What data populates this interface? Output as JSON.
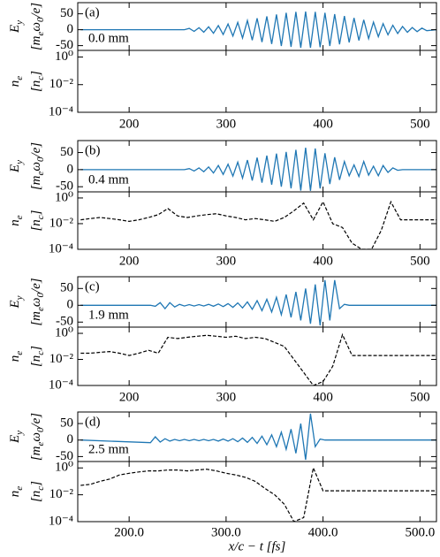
{
  "chart_data": [
    {
      "type": "line",
      "panel_label": "(a)",
      "annotation": "0.0 mm",
      "ylabel": [
        "E",
        "y"
      ],
      "yunit": [
        "[m",
        "e",
        "ω",
        "0",
        "/e]"
      ],
      "x": [
        150,
        222,
        227,
        232,
        237,
        242,
        247,
        252,
        257,
        262,
        267,
        272,
        277,
        282,
        287,
        292,
        297,
        302,
        307,
        312,
        317,
        322,
        327,
        332,
        337,
        342,
        347,
        352,
        357,
        362,
        367,
        372,
        377,
        382,
        387,
        392,
        397,
        402,
        407,
        412,
        417,
        422,
        427,
        432,
        437,
        442,
        447,
        452,
        457,
        462,
        467,
        472,
        477,
        482,
        487,
        492,
        497,
        502,
        507,
        517
      ],
      "series": [
        {
          "color": "#1f77b4",
          "values": [
            0,
            0,
            0,
            0,
            0,
            0,
            0,
            0,
            0,
            4.2,
            -5.2,
            6.4,
            -7.7,
            9.3,
            -11,
            13,
            -15,
            18,
            -20,
            23,
            -26,
            29,
            -33,
            36,
            -39,
            42,
            -45,
            48,
            -51,
            53,
            -54,
            56,
            -57,
            57,
            -57,
            56,
            -55,
            53,
            -51,
            49,
            -46,
            43,
            -40,
            37,
            -34,
            31,
            -28,
            24,
            -22,
            19,
            -16,
            14,
            -12,
            10,
            -8,
            7,
            -6,
            5,
            -3,
            0
          ]
        }
      ],
      "xlim": [
        147,
        517
      ],
      "ylim": [
        -65,
        85
      ],
      "yticks": [
        -50,
        0,
        50
      ]
    },
    {
      "type": "line",
      "ylabel": [
        "n",
        "e"
      ],
      "yunit": [
        "[n",
        "c",
        "]"
      ],
      "log_y": true,
      "xlim": [
        147,
        517
      ],
      "ylim": [
        0.0001,
        3
      ],
      "yticks": [
        {
          "value": 0.0001,
          "label": "10⁻⁴"
        },
        {
          "value": 0.01,
          "label": "10⁻²"
        },
        {
          "value": 1,
          "label": "10⁰"
        }
      ],
      "xticks": [
        200,
        300,
        400,
        500
      ]
    },
    {
      "type": "line",
      "panel_label": "(b)",
      "annotation": "0.4 mm",
      "ylabel": [
        "E",
        "y"
      ],
      "yunit": [
        "[m",
        "e",
        "ω",
        "0",
        "/e]"
      ],
      "x": [
        150,
        222,
        227,
        232,
        237,
        242,
        247,
        252,
        257,
        262,
        267,
        272,
        277,
        282,
        287,
        292,
        297,
        302,
        307,
        312,
        317,
        322,
        327,
        332,
        337,
        342,
        347,
        352,
        357,
        362,
        367,
        372,
        377,
        382,
        387,
        392,
        397,
        402,
        407,
        412,
        417,
        422,
        427,
        432,
        437,
        442,
        447,
        452,
        457,
        462,
        467,
        472,
        477,
        482,
        487,
        492,
        497,
        502,
        507,
        517
      ],
      "series": [
        {
          "color": "#1f77b4",
          "values": [
            0,
            0,
            0,
            0,
            0,
            0,
            0,
            0,
            0,
            3,
            -4,
            5,
            -6,
            8,
            -10,
            12,
            -14,
            16,
            -19,
            22,
            -25,
            28,
            -32,
            35,
            -38,
            41,
            -44,
            47,
            -50,
            52,
            -55,
            58,
            -61,
            64,
            -62,
            62,
            -55,
            48,
            -42,
            36,
            -30,
            24,
            -18,
            14,
            -20,
            24,
            -16,
            10,
            -18,
            12,
            -8,
            5,
            -2,
            0,
            0,
            0,
            0,
            0,
            0,
            0
          ]
        }
      ],
      "xlim": [
        147,
        517
      ],
      "ylim": [
        -65,
        85
      ],
      "yticks": [
        -50,
        0,
        50
      ]
    },
    {
      "type": "line",
      "ylabel": [
        "n",
        "e"
      ],
      "yunit": [
        "[n",
        "c",
        "]"
      ],
      "log_y": true,
      "x": [
        150,
        160,
        170,
        180,
        190,
        200,
        210,
        220,
        230,
        240,
        250,
        260,
        270,
        280,
        290,
        300,
        310,
        320,
        330,
        340,
        350,
        360,
        370,
        380,
        390,
        400,
        410,
        420,
        430,
        440,
        450,
        460,
        470,
        480,
        490,
        500,
        510,
        517
      ],
      "series": [
        {
          "color": "#000000",
          "values": [
            0.02,
            0.025,
            0.03,
            0.025,
            0.02,
            0.015,
            0.02,
            0.03,
            0.05,
            0.15,
            0.04,
            0.03,
            0.04,
            0.05,
            0.06,
            0.04,
            0.03,
            0.02,
            0.025,
            0.02,
            0.015,
            0.03,
            0.1,
            0.4,
            0.02,
            0.5,
            0.01,
            0.005,
            0.0003,
            0.0001,
            0.0001,
            0.003,
            0.5,
            0.02,
            0.02,
            0.02,
            0.02,
            0.02
          ]
        }
      ],
      "xlim": [
        147,
        517
      ],
      "ylim": [
        0.0001,
        3
      ],
      "yticks": [
        {
          "value": 0.0001,
          "label": "10⁻⁴"
        },
        {
          "value": 0.01,
          "label": "10⁻²"
        },
        {
          "value": 1,
          "label": "10⁰"
        }
      ],
      "xticks": [
        200,
        300,
        400,
        500
      ]
    },
    {
      "type": "line",
      "panel_label": "(c)",
      "annotation": "1.9 mm",
      "ylabel": [
        "E",
        "y"
      ],
      "yunit": [
        "[m",
        "e",
        "ω",
        "0",
        "/e]"
      ],
      "x": [
        150,
        222,
        227,
        232,
        237,
        242,
        247,
        252,
        257,
        262,
        267,
        272,
        277,
        282,
        287,
        292,
        297,
        302,
        307,
        312,
        317,
        322,
        327,
        332,
        337,
        342,
        347,
        352,
        357,
        362,
        367,
        372,
        377,
        382,
        387,
        392,
        397,
        402,
        407,
        412,
        417,
        422,
        427,
        432,
        437,
        442,
        447,
        452,
        457,
        462,
        467,
        472,
        477,
        482,
        487,
        492,
        497,
        502,
        507,
        517
      ],
      "series": [
        {
          "color": "#1f77b4",
          "values": [
            0,
            0,
            -3,
            8,
            -10,
            8,
            -5,
            3,
            -2,
            2,
            -2,
            2,
            -2,
            3,
            -3,
            4,
            -4,
            5,
            -6,
            7,
            -8,
            10,
            -12,
            14,
            -16,
            18,
            -20,
            24,
            -28,
            32,
            -36,
            40,
            -45,
            50,
            -55,
            62,
            -60,
            75,
            -45,
            75,
            -10,
            3,
            0,
            0,
            0,
            0,
            0,
            0,
            0,
            0,
            0,
            0,
            0,
            0,
            0,
            0,
            0,
            0,
            0,
            0
          ]
        }
      ],
      "xlim": [
        147,
        517
      ],
      "ylim": [
        -65,
        85
      ],
      "yticks": [
        -50,
        0,
        50
      ]
    },
    {
      "type": "line",
      "ylabel": [
        "n",
        "e"
      ],
      "yunit": [
        "[n",
        "c",
        "]"
      ],
      "log_y": true,
      "x": [
        150,
        160,
        170,
        180,
        190,
        200,
        210,
        220,
        230,
        240,
        250,
        260,
        270,
        280,
        290,
        300,
        310,
        320,
        330,
        340,
        350,
        360,
        370,
        380,
        390,
        400,
        410,
        420,
        430,
        440,
        450,
        460,
        470,
        480,
        490,
        500,
        510,
        517
      ],
      "series": [
        {
          "color": "#000000",
          "values": [
            0.03,
            0.03,
            0.035,
            0.04,
            0.03,
            0.02,
            0.03,
            0.05,
            0.03,
            0.5,
            0.4,
            0.5,
            0.6,
            0.7,
            0.6,
            0.5,
            0.6,
            0.4,
            0.5,
            0.4,
            0.2,
            0.1,
            0.01,
            0.001,
            0.0001,
            0.0002,
            0.003,
            0.8,
            0.02,
            0.02,
            0.02,
            0.02,
            0.02,
            0.02,
            0.02,
            0.02,
            0.02,
            0.02
          ]
        }
      ],
      "xlim": [
        147,
        517
      ],
      "ylim": [
        0.0001,
        3
      ],
      "yticks": [
        {
          "value": 0.0001,
          "label": "10⁻⁴"
        },
        {
          "value": 0.01,
          "label": "10⁻²"
        },
        {
          "value": 1,
          "label": "10⁰"
        }
      ],
      "xticks": [
        200,
        300,
        400,
        500
      ]
    },
    {
      "type": "line",
      "panel_label": "(d)",
      "annotation": "2.5 mm",
      "ylabel": [
        "E",
        "y"
      ],
      "yunit": [
        "[m",
        "e",
        "ω",
        "0",
        "/e]"
      ],
      "x": [
        150,
        222,
        227,
        232,
        237,
        242,
        247,
        252,
        257,
        262,
        267,
        272,
        277,
        282,
        287,
        292,
        297,
        302,
        307,
        312,
        317,
        322,
        327,
        332,
        337,
        342,
        347,
        352,
        357,
        362,
        367,
        372,
        377,
        382,
        387,
        392,
        397,
        402,
        407,
        412,
        417,
        422,
        427,
        432,
        437,
        442,
        447,
        452,
        457,
        462,
        467,
        472,
        477,
        482,
        487,
        492,
        497,
        502,
        507,
        517
      ],
      "series": [
        {
          "color": "#1f77b4",
          "values": [
            0,
            -8,
            10,
            -6,
            4,
            -3,
            2,
            -2,
            2,
            -2,
            2,
            -2,
            2,
            -2,
            2,
            -3,
            3,
            -3,
            4,
            -5,
            6,
            -7,
            8,
            -10,
            12,
            -14,
            16,
            -20,
            24,
            -28,
            33,
            -40,
            50,
            -60,
            80,
            -20,
            3,
            0,
            0,
            0,
            0,
            0,
            0,
            0,
            0,
            0,
            0,
            0,
            0,
            0,
            0,
            0,
            0,
            0,
            0,
            0,
            0,
            0,
            0,
            0
          ]
        }
      ],
      "xlim": [
        147,
        517
      ],
      "ylim": [
        -65,
        85
      ],
      "yticks": [
        -50,
        0,
        50
      ]
    },
    {
      "type": "line",
      "ylabel": [
        "n",
        "e"
      ],
      "yunit": [
        "[n",
        "c",
        "]"
      ],
      "log_y": true,
      "xlabel": "x/c − t [fs]",
      "x": [
        150,
        160,
        170,
        180,
        190,
        200,
        210,
        220,
        230,
        240,
        250,
        260,
        270,
        280,
        290,
        300,
        310,
        320,
        330,
        340,
        350,
        360,
        370,
        380,
        390,
        400,
        410,
        420,
        430,
        440,
        450,
        460,
        470,
        480,
        490,
        500,
        510,
        517
      ],
      "series": [
        {
          "color": "#000000",
          "values": [
            0.05,
            0.06,
            0.1,
            0.15,
            0.3,
            0.4,
            0.5,
            0.6,
            0.6,
            0.7,
            0.7,
            0.6,
            0.7,
            0.8,
            0.6,
            0.4,
            0.3,
            0.2,
            0.1,
            0.03,
            0.01,
            0.002,
            0.0001,
            0.0002,
            1,
            0.02,
            0.02,
            0.02,
            0.02,
            0.02,
            0.02,
            0.02,
            0.02,
            0.02,
            0.02,
            0.02,
            0.02,
            0.02
          ]
        }
      ],
      "xlim": [
        147,
        517
      ],
      "ylim": [
        0.0001,
        3
      ],
      "yticks": [
        {
          "value": 0.0001,
          "label": "10⁻⁴"
        },
        {
          "value": 0.01,
          "label": "10⁻²"
        },
        {
          "value": 1,
          "label": "10⁰"
        }
      ],
      "xticks": [
        {
          "value": 200,
          "label": "200.0"
        },
        {
          "value": 300,
          "label": "300.0"
        },
        {
          "value": 400,
          "label": "400.0"
        },
        {
          "value": 500,
          "label": "500.0"
        }
      ]
    }
  ]
}
